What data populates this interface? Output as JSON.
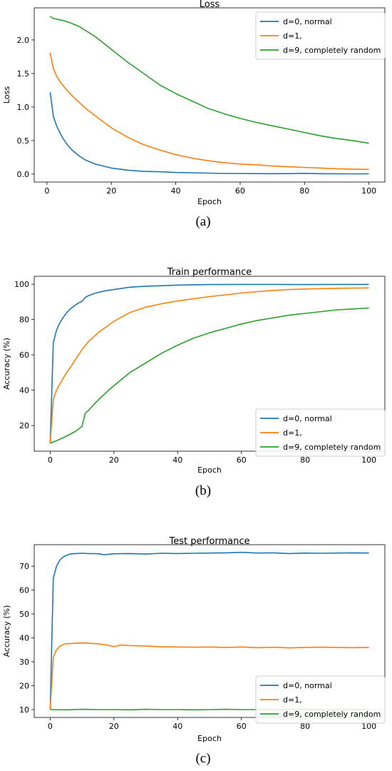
{
  "chart_data": [
    {
      "id": "a",
      "type": "line",
      "title": "Loss",
      "xlabel": "Epoch",
      "ylabel": "Loss",
      "caption": "(a)",
      "xlim": [
        -3.95,
        104.95
      ],
      "ylim": [
        -0.118,
        2.478
      ],
      "xticks": [
        0,
        20,
        40,
        60,
        80,
        100
      ],
      "yticks": [
        0.0,
        0.5,
        1.0,
        1.5,
        2.0
      ],
      "ytick_labels": [
        "0.0",
        "0.5",
        "1.0",
        "1.5",
        "2.0"
      ],
      "grid": false,
      "legend_position": "top-right",
      "colors": [
        "#1f77b4",
        "#ff7f0e",
        "#2ca02c"
      ],
      "series": [
        {
          "name": "d=0, normal",
          "x": [
            1,
            2,
            3,
            4,
            5,
            6,
            7,
            8,
            10,
            12,
            15,
            20,
            25,
            30,
            35,
            40,
            45,
            50,
            55,
            60,
            65,
            70,
            75,
            80,
            85,
            90,
            95,
            100
          ],
          "y": [
            1.22,
            0.86,
            0.72,
            0.62,
            0.53,
            0.46,
            0.4,
            0.35,
            0.27,
            0.21,
            0.15,
            0.09,
            0.06,
            0.04,
            0.035,
            0.025,
            0.02,
            0.015,
            0.01,
            0.01,
            0.008,
            0.006,
            0.008,
            0.012,
            0.006,
            0.005,
            0.004,
            0.004
          ]
        },
        {
          "name": "d=1,",
          "x": [
            1,
            2,
            3,
            4,
            5,
            6,
            8,
            10,
            12,
            15,
            20,
            25,
            30,
            35,
            40,
            45,
            50,
            55,
            60,
            65,
            70,
            75,
            80,
            85,
            90,
            95,
            100
          ],
          "y": [
            1.81,
            1.57,
            1.46,
            1.38,
            1.32,
            1.26,
            1.16,
            1.07,
            0.98,
            0.87,
            0.69,
            0.55,
            0.44,
            0.36,
            0.29,
            0.24,
            0.2,
            0.17,
            0.15,
            0.14,
            0.12,
            0.11,
            0.1,
            0.09,
            0.08,
            0.075,
            0.07
          ]
        },
        {
          "name": "d=9, completely random",
          "x": [
            1,
            2,
            3,
            5,
            7,
            10,
            12,
            15,
            20,
            25,
            30,
            35,
            40,
            45,
            50,
            55,
            60,
            65,
            70,
            75,
            80,
            85,
            90,
            95,
            100
          ],
          "y": [
            2.35,
            2.32,
            2.31,
            2.29,
            2.26,
            2.2,
            2.14,
            2.05,
            1.86,
            1.67,
            1.5,
            1.33,
            1.2,
            1.09,
            0.98,
            0.9,
            0.83,
            0.77,
            0.72,
            0.67,
            0.62,
            0.57,
            0.53,
            0.5,
            0.46
          ]
        }
      ]
    },
    {
      "id": "b",
      "type": "line",
      "title": "Train performance",
      "xlabel": "Epoch",
      "ylabel": "Accuracy (%)",
      "caption": "(b)",
      "xlim": [
        -5,
        105
      ],
      "ylim": [
        5.5,
        104.5
      ],
      "xticks": [
        0,
        20,
        40,
        60,
        80,
        100
      ],
      "yticks": [
        20,
        40,
        60,
        80,
        100
      ],
      "ytick_labels": [
        "20",
        "40",
        "60",
        "80",
        "100"
      ],
      "grid": false,
      "legend_position": "bottom-right",
      "colors": [
        "#1f77b4",
        "#ff7f0e",
        "#2ca02c"
      ],
      "series": [
        {
          "name": "d=0, normal",
          "x": [
            0,
            1,
            2,
            3,
            4,
            5,
            6,
            7,
            8,
            9,
            10,
            11,
            12,
            14,
            16,
            18,
            20,
            25,
            30,
            40,
            50,
            60,
            70,
            80,
            90,
            100
          ],
          "y": [
            10,
            67,
            74,
            78,
            81,
            83.5,
            85.5,
            87,
            88.3,
            89.5,
            90.3,
            92.5,
            93.5,
            94.8,
            95.8,
            96.5,
            97,
            98.3,
            98.9,
            99.5,
            99.8,
            99.9,
            99.9,
            99.8,
            99.9,
            99.9
          ]
        },
        {
          "name": "d=1,",
          "x": [
            0,
            1,
            2,
            3,
            4,
            5,
            6,
            8,
            10,
            12,
            15,
            20,
            25,
            30,
            35,
            40,
            45,
            50,
            55,
            60,
            65,
            70,
            75,
            80,
            85,
            90,
            95,
            100
          ],
          "y": [
            10,
            35,
            40,
            43.5,
            46.5,
            49.5,
            52,
            57.5,
            63,
            67.5,
            72.5,
            79,
            84,
            87,
            89,
            90.5,
            91.8,
            93,
            94,
            95,
            95.8,
            96.5,
            97,
            97.3,
            97.5,
            97.7,
            97.8,
            97.9
          ]
        },
        {
          "name": "d=9, completely random",
          "x": [
            0,
            2,
            4,
            6,
            8,
            10,
            11,
            12,
            14,
            16,
            18,
            20,
            25,
            30,
            35,
            40,
            45,
            50,
            55,
            60,
            65,
            70,
            75,
            80,
            85,
            90,
            95,
            100
          ],
          "y": [
            10,
            11.5,
            13,
            14.8,
            16.8,
            19.5,
            27,
            28.5,
            32.5,
            36,
            39.5,
            42.5,
            50,
            55.5,
            61,
            65.5,
            69.5,
            72.5,
            75,
            77.5,
            79.5,
            81,
            82.5,
            83.5,
            84.5,
            85.5,
            86,
            86.5
          ]
        }
      ]
    },
    {
      "id": "c",
      "type": "line",
      "title": "Test performance",
      "xlabel": "Epoch",
      "ylabel": "Accuracy (%)",
      "caption": "(c)",
      "xlim": [
        -5,
        105
      ],
      "ylim": [
        6.7,
        79.0
      ],
      "xticks": [
        0,
        20,
        40,
        60,
        80,
        100
      ],
      "yticks": [
        10,
        20,
        30,
        40,
        50,
        60,
        70
      ],
      "ytick_labels": [
        "10",
        "20",
        "30",
        "40",
        "50",
        "60",
        "70"
      ],
      "grid": false,
      "legend_position": "bottom-right",
      "colors": [
        "#1f77b4",
        "#ff7f0e",
        "#2ca02c"
      ],
      "series": [
        {
          "name": "d=0, normal",
          "x": [
            0,
            1,
            2,
            3,
            4,
            5,
            6,
            7,
            8,
            10,
            12,
            15,
            17,
            20,
            25,
            30,
            35,
            40,
            45,
            50,
            55,
            60,
            65,
            70,
            75,
            80,
            85,
            90,
            95,
            100
          ],
          "y": [
            10,
            65,
            70,
            72.5,
            73.8,
            74.5,
            75,
            75.2,
            75.3,
            75.4,
            75.3,
            75.2,
            74.8,
            75.2,
            75.3,
            75.1,
            75.4,
            75.3,
            75.4,
            75.5,
            75.6,
            75.8,
            75.5,
            75.6,
            75.3,
            75.5,
            75.4,
            75.5,
            75.6,
            75.5
          ]
        },
        {
          "name": "d=1,",
          "x": [
            0,
            1,
            2,
            3,
            4,
            5,
            6,
            8,
            10,
            12,
            15,
            18,
            20,
            22,
            25,
            30,
            35,
            40,
            45,
            50,
            55,
            60,
            65,
            70,
            75,
            80,
            85,
            90,
            95,
            100
          ],
          "y": [
            10,
            32,
            35,
            36.5,
            37.2,
            37.5,
            37.6,
            37.8,
            37.9,
            37.8,
            37.5,
            37,
            36.3,
            37,
            36.8,
            36.6,
            36.3,
            36.2,
            36.1,
            36.2,
            36,
            36.2,
            35.9,
            36.1,
            35.8,
            36,
            36.1,
            36,
            35.9,
            36
          ]
        },
        {
          "name": "d=9, completely random",
          "x": [
            0,
            5,
            10,
            15,
            20,
            25,
            30,
            35,
            40,
            45,
            50,
            55,
            60,
            65,
            70,
            75,
            80,
            85,
            90,
            95,
            100
          ],
          "y": [
            10,
            9.9,
            10.1,
            10,
            10,
            9.9,
            10.1,
            10,
            10,
            9.9,
            10,
            10.1,
            10,
            10,
            9.9,
            10,
            10.1,
            10,
            10,
            10,
            10
          ]
        }
      ]
    }
  ]
}
